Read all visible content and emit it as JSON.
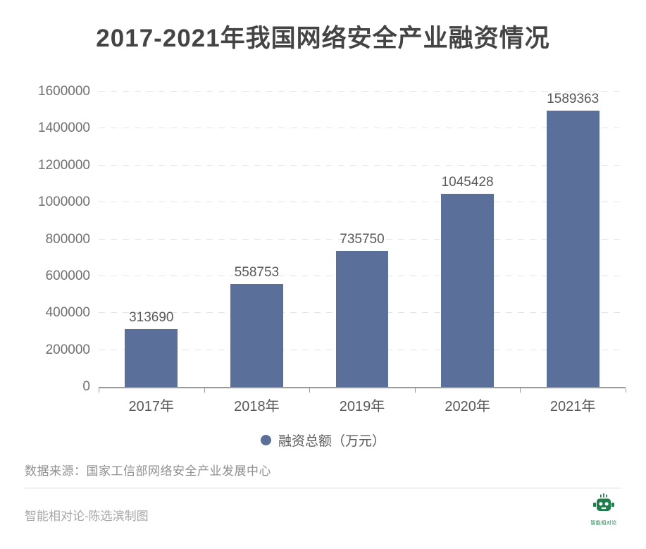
{
  "title": "2017-2021年我国网络安全产业融资情况",
  "chart_data": {
    "type": "bar",
    "title": "2017-2021年我国网络安全产业融资情况",
    "categories": [
      "2017年",
      "2018年",
      "2019年",
      "2020年",
      "2021年"
    ],
    "values": [
      313690,
      558753,
      735750,
      1045428,
      1589363
    ],
    "series_name": "融资总额（万元）",
    "xlabel": "",
    "ylabel": "",
    "ylim": [
      0,
      1600000
    ],
    "yticks": [
      0,
      200000,
      400000,
      600000,
      800000,
      1000000,
      1200000,
      1400000,
      1600000
    ],
    "grid": "horizontal-dashed",
    "legend_position": "bottom",
    "bar_color": "#5a6f99",
    "value_labels": true
  },
  "legend": {
    "label": "融资总额（万元）",
    "dot_color": "#5a6f99"
  },
  "source": {
    "text": "数据来源：国家工信部网络安全产业发展中心"
  },
  "footer": {
    "credit": "智能相对论-陈选滨制图",
    "logo_text": "智能相对论",
    "logo_color": "#1f7d4c"
  }
}
